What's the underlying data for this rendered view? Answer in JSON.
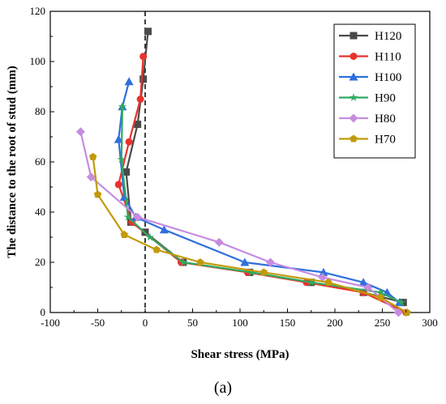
{
  "chart_data": {
    "type": "line",
    "title": "",
    "xlabel": "Shear stress (MPa)",
    "ylabel": "The distance to the root of stud (mm)",
    "xlim": [
      -100,
      300
    ],
    "ylim": [
      0,
      120
    ],
    "xticks": [
      -100,
      -50,
      0,
      50,
      100,
      150,
      200,
      250,
      300
    ],
    "yticks": [
      0,
      20,
      40,
      60,
      80,
      100,
      120
    ],
    "reference_line": {
      "x": 0,
      "style": "dashed"
    },
    "legend_position": "top-right",
    "caption": "(a)",
    "series": [
      {
        "name": "H120",
        "color": "#4a4a4a",
        "marker": "square",
        "x": [
          3,
          -2,
          -8,
          -20,
          -15,
          0,
          40,
          110,
          175,
          230,
          272
        ],
        "y": [
          112,
          93,
          75,
          56,
          36,
          32,
          20,
          16,
          12,
          8,
          4
        ]
      },
      {
        "name": "H110",
        "color": "#e8332c",
        "marker": "circle",
        "x": [
          -2,
          -5,
          -17,
          -28,
          -14,
          38,
          108,
          170,
          230,
          275
        ],
        "y": [
          102,
          85,
          68,
          51,
          36,
          20,
          16,
          12,
          8,
          0
        ]
      },
      {
        "name": "H100",
        "color": "#2f6fdd",
        "marker": "triangle",
        "x": [
          -17,
          -24,
          -28,
          -22,
          -10,
          20,
          105,
          188,
          230,
          255,
          268
        ],
        "y": [
          92,
          82,
          69,
          46,
          38,
          33,
          20,
          16,
          12,
          8,
          4
        ]
      },
      {
        "name": "H90",
        "color": "#2faa5f",
        "marker": "star",
        "x": [
          -24,
          -25,
          -18,
          5,
          40,
          112,
          175,
          248,
          270
        ],
        "y": [
          82,
          61,
          38,
          30,
          20,
          16,
          12,
          8,
          4
        ]
      },
      {
        "name": "H80",
        "color": "#c68ce0",
        "marker": "diamond",
        "x": [
          -68,
          -57,
          -8,
          78,
          132,
          187,
          235,
          267
        ],
        "y": [
          72,
          54,
          38,
          28,
          20,
          14,
          10,
          0
        ]
      },
      {
        "name": "H70",
        "color": "#c29a0a",
        "marker": "pentagon",
        "x": [
          -55,
          -50,
          -22,
          12,
          58,
          125,
          193,
          248,
          276
        ],
        "y": [
          62,
          47,
          31,
          25,
          20,
          16,
          12,
          6,
          0
        ]
      }
    ]
  }
}
